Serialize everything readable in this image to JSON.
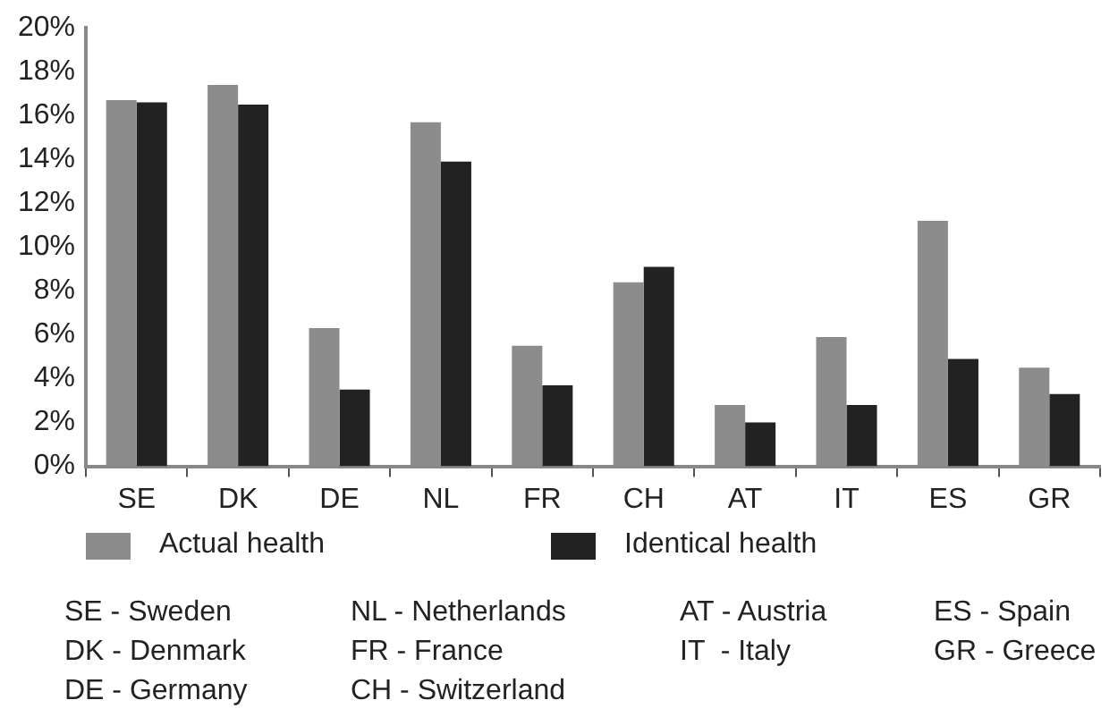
{
  "chart_data": {
    "type": "bar",
    "categories": [
      "SE",
      "DK",
      "DE",
      "NL",
      "FR",
      "CH",
      "AT",
      "IT",
      "ES",
      "GR"
    ],
    "series": [
      {
        "name": "Actual health",
        "color": "#8c8c8c",
        "values": [
          16.7,
          17.4,
          6.3,
          15.7,
          5.5,
          8.4,
          2.8,
          5.9,
          11.2,
          4.5
        ]
      },
      {
        "name": "Identical health",
        "color": "#222222",
        "values": [
          16.6,
          16.5,
          3.5,
          13.9,
          3.7,
          9.1,
          2.0,
          2.8,
          4.9,
          3.3
        ]
      }
    ],
    "ylim": [
      0,
      20
    ],
    "yticks": [
      {
        "value": 0,
        "label": "0%"
      },
      {
        "value": 2,
        "label": "2%"
      },
      {
        "value": 4,
        "label": "4%"
      },
      {
        "value": 6,
        "label": "6%"
      },
      {
        "value": 8,
        "label": "8%"
      },
      {
        "value": 10,
        "label": "10%"
      },
      {
        "value": 12,
        "label": "12%"
      },
      {
        "value": 14,
        "label": "14%"
      },
      {
        "value": 16,
        "label": "16%"
      },
      {
        "value": 18,
        "label": "18%"
      },
      {
        "value": 20,
        "label": "20%"
      }
    ],
    "grid": false,
    "legend": "bottom",
    "annotations": [
      "SE - Sweden",
      "DK - Denmark",
      "DE - Germany",
      "NL - Netherlands",
      "FR - France",
      "CH - Switzerland",
      "AT - Austria",
      "IT  - Italy",
      "ES - Spain",
      "GR - Greece"
    ]
  }
}
